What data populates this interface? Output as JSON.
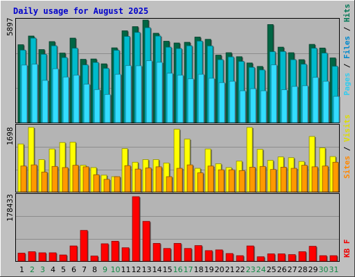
{
  "chart_data": [
    {
      "type": "bar",
      "title": "Daily usage for August 2025",
      "categories": [
        "1",
        "2",
        "3",
        "4",
        "5",
        "6",
        "7",
        "8",
        "9",
        "10",
        "11",
        "12",
        "13",
        "14",
        "15",
        "16",
        "17",
        "18",
        "19",
        "20",
        "21",
        "22",
        "23",
        "24",
        "25",
        "26",
        "27",
        "28",
        "29",
        "30",
        "31"
      ],
      "weekend_days": [
        "2",
        "3",
        "9",
        "10",
        "16",
        "17",
        "23",
        "24",
        "30",
        "31"
      ],
      "ylabel_max": "5897",
      "ylim": [
        0,
        5897
      ],
      "grid": true,
      "legend": {
        "placement": "right",
        "items": [
          "Pages",
          "Files",
          "Hits"
        ]
      },
      "series": [
        {
          "name": "Hits",
          "color": "#006644",
          "values": [
            4480,
            4980,
            4200,
            4660,
            4000,
            4860,
            3640,
            3660,
            3380,
            4300,
            5280,
            5520,
            5897,
            5140,
            4680,
            4580,
            4620,
            4920,
            4790,
            3880,
            4020,
            3790,
            3430,
            3230,
            5640,
            4340,
            4020,
            3620,
            4500,
            4290,
            3720
          ]
        },
        {
          "name": "Files",
          "color": "#00bbcc",
          "values": [
            4170,
            4860,
            3930,
            4420,
            3740,
            4280,
            3320,
            3460,
            3120,
            4160,
            4960,
            5190,
            5460,
            4980,
            4340,
            4260,
            4420,
            4690,
            4410,
            3620,
            3780,
            3520,
            3180,
            3030,
            4080,
            4090,
            3620,
            3360,
            4280,
            4000,
            3240
          ]
        },
        {
          "name": "Pages",
          "color": "#33ddff",
          "values": [
            3310,
            3360,
            2430,
            3100,
            2620,
            2730,
            2210,
            1900,
            1620,
            2780,
            3280,
            3270,
            3560,
            3470,
            2840,
            2730,
            2520,
            2780,
            2550,
            2300,
            2380,
            1830,
            1950,
            1830,
            3320,
            1890,
            2080,
            2120,
            2600,
            2380,
            1510
          ]
        }
      ]
    },
    {
      "type": "bar",
      "ylabel_max": "1698",
      "ylim": [
        0,
        1698
      ],
      "grid": true,
      "legend": {
        "placement": "right",
        "items": [
          "Sites",
          "Visits"
        ]
      },
      "series": [
        {
          "name": "Visits",
          "color": "#ffff00",
          "values": [
            1260,
            1698,
            850,
            1130,
            1300,
            1310,
            700,
            640,
            440,
            400,
            1140,
            780,
            850,
            850,
            760,
            1650,
            1390,
            620,
            1130,
            740,
            640,
            810,
            1698,
            1120,
            830,
            920,
            900,
            800,
            1460,
            1160,
            930
          ]
        },
        {
          "name": "Sites",
          "color": "#ff9900",
          "values": [
            680,
            710,
            520,
            670,
            640,
            700,
            660,
            450,
            330,
            400,
            690,
            600,
            630,
            660,
            400,
            620,
            710,
            500,
            680,
            580,
            580,
            560,
            650,
            670,
            590,
            650,
            620,
            700,
            660,
            680,
            780
          ]
        }
      ]
    },
    {
      "type": "bar",
      "ylabel_max": "178433",
      "ylim": [
        0,
        178433
      ],
      "grid": true,
      "legend": {
        "placement": "right",
        "items": [
          "KB F"
        ]
      },
      "series": [
        {
          "name": "KB F",
          "color": "#ff0000",
          "values": [
            22000,
            26000,
            23000,
            23000,
            17000,
            42000,
            85000,
            14000,
            48000,
            55000,
            37000,
            178433,
            110000,
            49000,
            35000,
            49000,
            35000,
            43000,
            29000,
            31000,
            21000,
            15000,
            42000,
            12000,
            20000,
            20000,
            18000,
            26000,
            41000,
            15000,
            15000
          ]
        }
      ]
    }
  ]
}
